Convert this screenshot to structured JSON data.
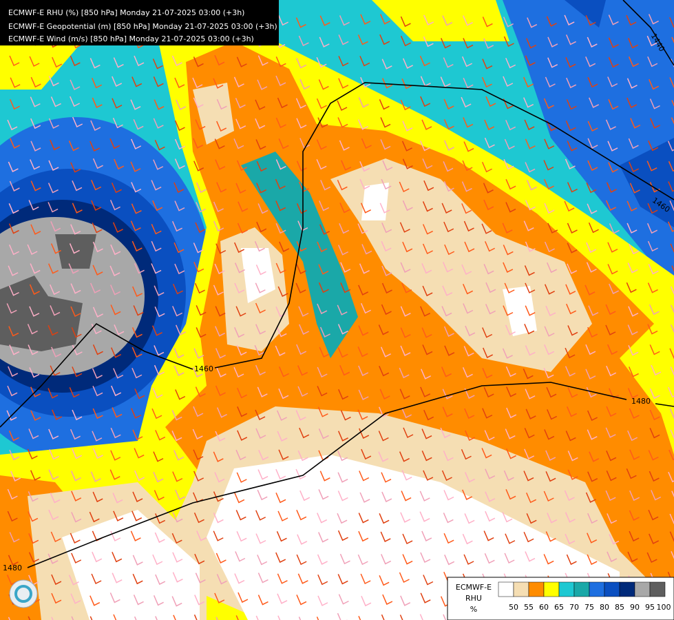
{
  "header": {
    "lines": [
      "ECMWF-E RHU (%) [850 hPa] Monday 21-07-2025 03:00 (+3h)",
      "ECMWF-E Geopotential (m) [850 hPa] Monday 21-07-2025 03:00 (+3h)",
      "ECMWF-E Wind (m/s) [850 hPa] Monday 21-07-2025 03:00 (+3h)"
    ]
  },
  "contours": [
    {
      "label": "1440"
    },
    {
      "label": "1460"
    },
    {
      "label": "1460"
    },
    {
      "label": "1480"
    },
    {
      "label": "1480"
    }
  ],
  "legend": {
    "title": "ECMWF-E",
    "variable": "RHU",
    "unit": "%",
    "ticks": [
      50,
      55,
      60,
      65,
      70,
      75,
      80,
      85,
      90,
      95,
      100
    ],
    "colors": [
      "#ffffff",
      "#f5deb3",
      "#ff8c00",
      "#ffff00",
      "#1ec8d2",
      "#1aa8a8",
      "#1e6fe0",
      "#0a4fc0",
      "#002a7a",
      "#a8a8a8",
      "#5e5e5e"
    ]
  }
}
